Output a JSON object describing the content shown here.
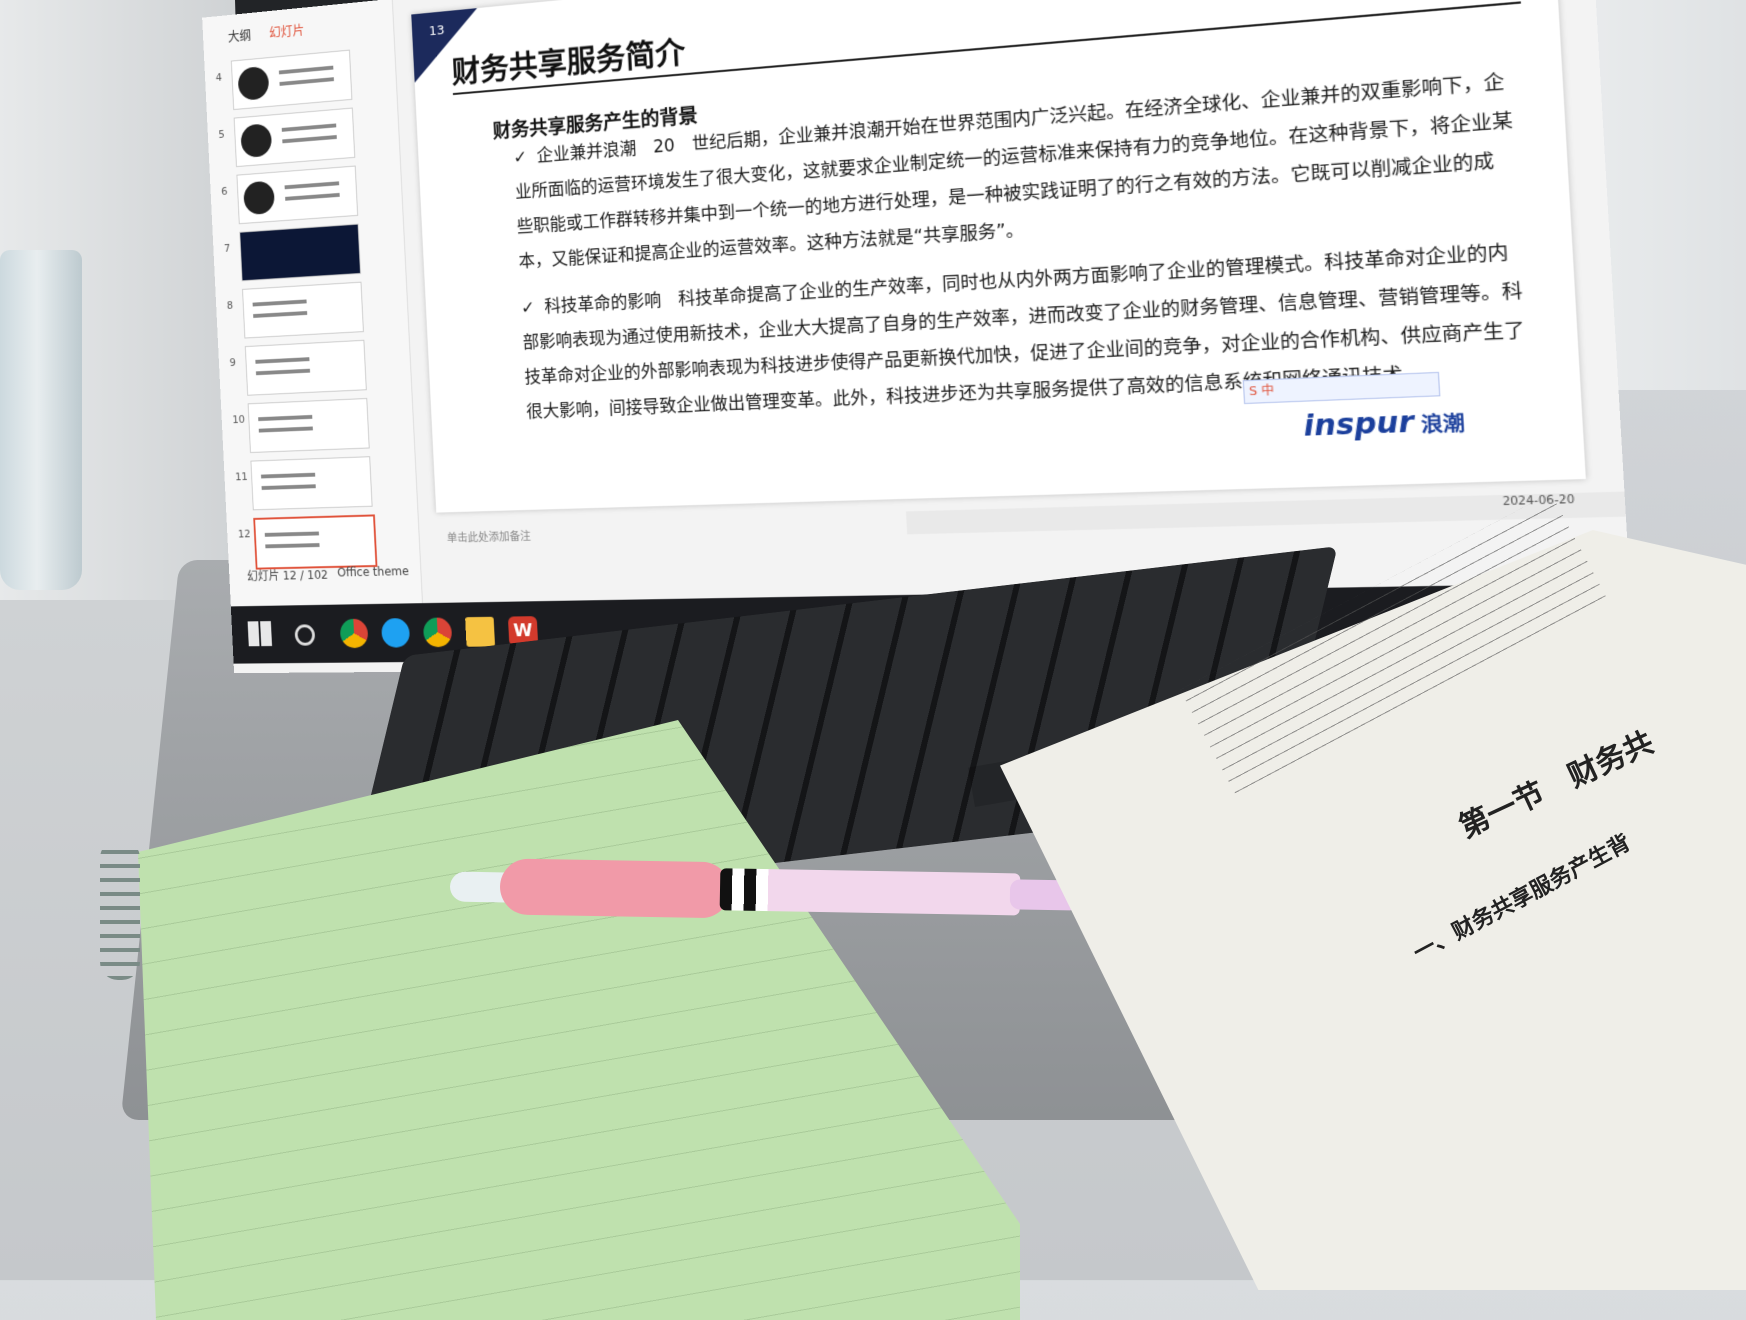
{
  "pane": {
    "tab_outline": "大纲",
    "tab_slides": "幻灯片"
  },
  "thumbnails": [
    "4",
    "5",
    "6",
    "7",
    "8",
    "9",
    "10",
    "11",
    "12"
  ],
  "slide": {
    "number": "13",
    "title": "财务共享服务简介",
    "section": "财务共享服务产生的背景",
    "para1": "企业兼并浪潮　20　世纪后期，企业兼并浪潮开始在世界范围内广泛兴起。在经济全球化、企业兼并的双重影响下，企业所面临的运营环境发生了很大变化，这就要求企业制定统一的运营标准来保持有力的竞争地位。在这种背景下，将企业某些职能或工作群转移并集中到一个统一的地方进行处理，是一种被实践证明了的行之有效的方法。它既可以削减企业的成本，又能保证和提高企业的运营效率。这种方法就是“共享服务”。",
    "para2": "科技革命的影响　科技革命提高了企业的生产效率，同时也从内外两方面影响了企业的管理模式。科技革命对企业的内部影响表现为通过使用新技术，企业大大提高了自身的生产效率，进而改变了企业的财务管理、信息管理、营销管理等。科技革命对企业的外部影响表现为科技进步使得产品更新换代加快，促进了企业间的竞争，对企业的合作机构、供应商产生了很大影响，间接导致企业做出管理变革。此外，科技进步还为共享服务提供了高效的信息系统和网络通讯技术。",
    "logo": "inspur",
    "logo_cn": "浪潮",
    "ime": "S 中"
  },
  "notes": "单击此处添加备注",
  "status": {
    "slide_count": "幻灯片 12 / 102",
    "theme": "Office theme",
    "date": "2024-06-20"
  },
  "book": {
    "heading": "第一节　财务共",
    "sub": "一、财务共享服务产生背"
  },
  "colors": {
    "slide_accent": "#1c2a5c",
    "logo": "#1b3f9c",
    "notebook": "#bfe1ae"
  }
}
